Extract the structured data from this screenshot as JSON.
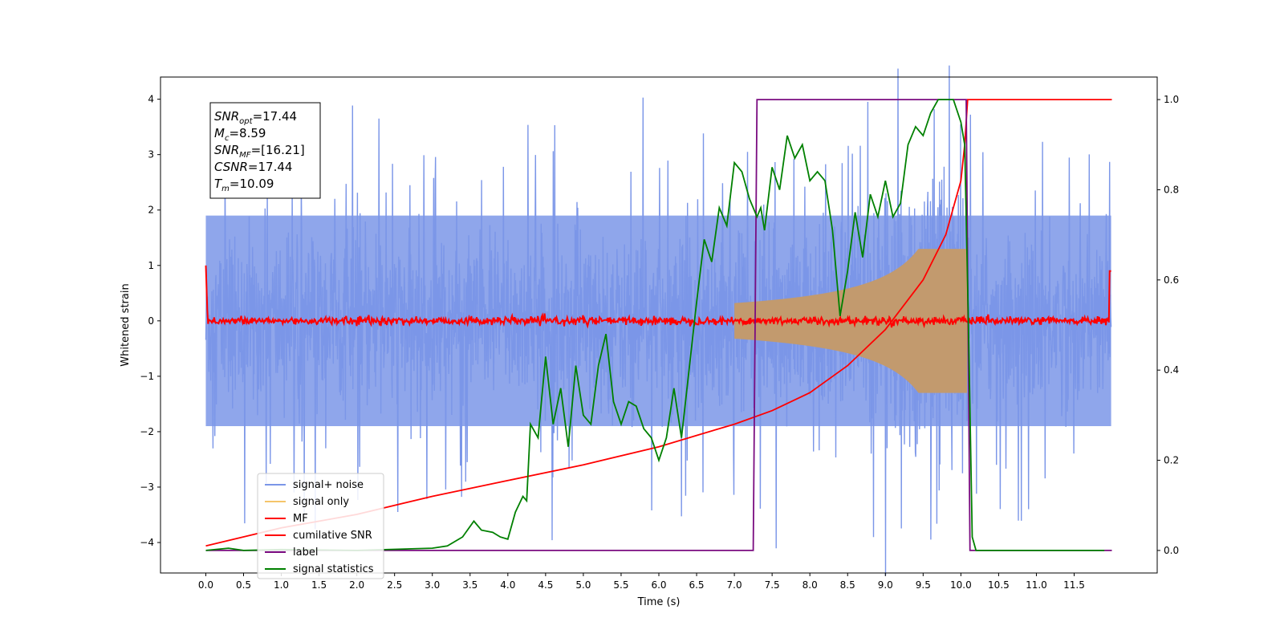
{
  "chart_data": {
    "type": "line",
    "xlabel": "Time (s)",
    "ylabel": "Whitened strain",
    "xlim": [
      -0.6,
      12.6
    ],
    "ylim": [
      -4.55,
      4.4
    ],
    "y2lim": [
      -0.05,
      1.05
    ],
    "x_ticks": [
      "0.0",
      "0.5",
      "1.0",
      "1.5",
      "2.0",
      "2.5",
      "3.0",
      "3.5",
      "4.0",
      "4.5",
      "5.0",
      "5.5",
      "6.0",
      "6.5",
      "7.0",
      "7.5",
      "8.0",
      "8.5",
      "9.0",
      "9.5",
      "10.0",
      "10.5",
      "11.0",
      "11.5"
    ],
    "y_ticks": [
      "4",
      "3",
      "2",
      "1",
      "0",
      "−1",
      "−2",
      "−3",
      "−4"
    ],
    "y2_ticks": [
      "1.0",
      "0.8",
      "0.6",
      "0.4",
      "0.2",
      "0.0"
    ],
    "grid": false,
    "legend_position": "lower-left",
    "annotation": [
      {
        "var": "SNR",
        "sub": "opt",
        "value": "=17.44"
      },
      {
        "var": "M",
        "sub": "c",
        "value": "=8.59"
      },
      {
        "var": "SNR",
        "sub": "MF",
        "value": "=[16.21]"
      },
      {
        "var": "CSNR",
        "sub": "",
        "value": "=17.44"
      },
      {
        "var": "T",
        "sub": "m",
        "value": "=10.09"
      }
    ],
    "series": [
      {
        "name": "signal+ noise",
        "color": "#7b96e8",
        "axis": "left",
        "description": "noise band approx ±1.9 with spikes up to ±4, plus chirp",
        "x_range": [
          0.0,
          11.99
        ]
      },
      {
        "name": "signal only",
        "color": "#f5c56a",
        "axis": "left",
        "chirp_peak_x": 10.09,
        "chirp_peak_amplitude": 1.3
      },
      {
        "name": "MF",
        "color": "#ff0000",
        "axis": "left",
        "description": "near zero with noise ±0.1, edge spikes to ~1"
      },
      {
        "name": "cumilative SNR",
        "color": "#ff0000",
        "axis": "right",
        "x": [
          0.0,
          1.0,
          2.0,
          3.0,
          4.0,
          5.0,
          6.0,
          6.5,
          7.0,
          7.5,
          8.0,
          8.5,
          9.0,
          9.5,
          9.8,
          10.0,
          10.05,
          10.09,
          12.0
        ],
        "values": [
          0.01,
          0.05,
          0.08,
          0.12,
          0.155,
          0.19,
          0.23,
          0.255,
          0.28,
          0.31,
          0.35,
          0.41,
          0.49,
          0.6,
          0.7,
          0.82,
          0.9,
          1.0,
          1.0
        ]
      },
      {
        "name": "label",
        "color": "#7a0c80",
        "axis": "right",
        "x": [
          0.0,
          7.25,
          7.3,
          10.07,
          10.12,
          12.0
        ],
        "values": [
          0.0,
          0.0,
          1.0,
          1.0,
          0.0,
          0.0
        ]
      },
      {
        "name": "signal statistics",
        "color": "#008000",
        "axis": "right",
        "x": [
          0.0,
          0.3,
          0.5,
          1.0,
          2.0,
          3.0,
          3.2,
          3.4,
          3.55,
          3.65,
          3.8,
          3.9,
          4.0,
          4.1,
          4.2,
          4.25,
          4.3,
          4.4,
          4.5,
          4.6,
          4.7,
          4.8,
          4.9,
          5.0,
          5.1,
          5.2,
          5.3,
          5.4,
          5.5,
          5.6,
          5.7,
          5.8,
          5.9,
          6.0,
          6.1,
          6.2,
          6.3,
          6.4,
          6.5,
          6.6,
          6.7,
          6.8,
          6.9,
          7.0,
          7.1,
          7.2,
          7.3,
          7.35,
          7.4,
          7.5,
          7.6,
          7.7,
          7.8,
          7.9,
          8.0,
          8.1,
          8.2,
          8.3,
          8.4,
          8.5,
          8.6,
          8.7,
          8.8,
          8.9,
          9.0,
          9.1,
          9.2,
          9.3,
          9.4,
          9.5,
          9.6,
          9.7,
          9.8,
          9.9,
          10.0,
          10.05,
          10.1,
          10.15,
          10.2,
          11.0,
          11.9
        ],
        "values": [
          0.0,
          0.005,
          0.0,
          0.002,
          0.0,
          0.005,
          0.01,
          0.03,
          0.065,
          0.045,
          0.04,
          0.03,
          0.025,
          0.085,
          0.12,
          0.11,
          0.28,
          0.25,
          0.43,
          0.28,
          0.36,
          0.23,
          0.41,
          0.3,
          0.28,
          0.41,
          0.48,
          0.33,
          0.28,
          0.33,
          0.32,
          0.27,
          0.25,
          0.2,
          0.25,
          0.36,
          0.25,
          0.4,
          0.55,
          0.69,
          0.64,
          0.76,
          0.72,
          0.86,
          0.84,
          0.78,
          0.74,
          0.76,
          0.71,
          0.85,
          0.8,
          0.92,
          0.87,
          0.9,
          0.82,
          0.84,
          0.82,
          0.71,
          0.52,
          0.62,
          0.75,
          0.65,
          0.79,
          0.74,
          0.82,
          0.74,
          0.77,
          0.9,
          0.94,
          0.92,
          0.97,
          1.0,
          1.0,
          1.0,
          0.95,
          0.9,
          0.5,
          0.03,
          0.0,
          0.0,
          0.0
        ]
      }
    ]
  }
}
